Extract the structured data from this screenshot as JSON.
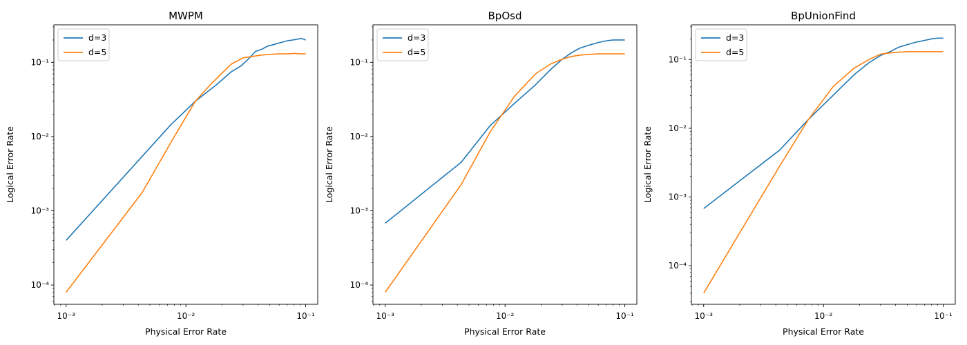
{
  "figure": {
    "title": "",
    "colors": {
      "d3": "#1f77b4",
      "d5": "#ff7f0e"
    }
  },
  "chart_data": [
    {
      "type": "line",
      "title": "MWPM",
      "xlabel": "Physical Error Rate",
      "ylabel": "Logical Error Rate",
      "xscale": "log",
      "yscale": "log",
      "xlim": [
        0.00079,
        0.126
      ],
      "ylim": [
        5.5e-05,
        0.32
      ],
      "xticks": [
        {
          "value": 0.001,
          "label": "10⁻³"
        },
        {
          "value": 0.01,
          "label": "10⁻²"
        },
        {
          "value": 0.1,
          "label": "10⁻¹"
        }
      ],
      "yticks": [
        {
          "value": 0.0001,
          "label": "10⁻⁴"
        },
        {
          "value": 0.001,
          "label": "10⁻³"
        },
        {
          "value": 0.01,
          "label": "10⁻²"
        },
        {
          "value": 0.1,
          "label": "10⁻¹"
        }
      ],
      "grid": false,
      "legend": "upper-left",
      "series": [
        {
          "name": "d=3",
          "color": "#1f77b4",
          "x": [
            0.001,
            0.0075,
            0.012,
            0.018,
            0.024,
            0.029,
            0.034,
            0.038,
            0.043,
            0.048,
            0.055,
            0.062,
            0.07,
            0.078,
            0.085,
            0.092,
            0.1
          ],
          "y": [
            0.0004,
            0.0145,
            0.03,
            0.05,
            0.075,
            0.09,
            0.115,
            0.14,
            0.15,
            0.165,
            0.175,
            0.185,
            0.195,
            0.2,
            0.205,
            0.21,
            0.2
          ]
        },
        {
          "name": "d=5",
          "color": "#ff7f0e",
          "x": [
            0.001,
            0.0043,
            0.0077,
            0.012,
            0.016,
            0.024,
            0.03,
            0.036,
            0.042,
            0.05,
            0.06,
            0.07,
            0.08,
            0.09,
            0.1
          ],
          "y": [
            8e-05,
            0.00175,
            0.009,
            0.03,
            0.05,
            0.095,
            0.115,
            0.12,
            0.125,
            0.128,
            0.13,
            0.13,
            0.132,
            0.13,
            0.13
          ]
        }
      ]
    },
    {
      "type": "line",
      "title": "BpOsd",
      "xlabel": "Physical Error Rate",
      "ylabel": "Logical Error Rate",
      "xscale": "log",
      "yscale": "log",
      "xlim": [
        0.00079,
        0.126
      ],
      "ylim": [
        5.5e-05,
        0.32
      ],
      "xticks": [
        {
          "value": 0.001,
          "label": "10⁻³"
        },
        {
          "value": 0.01,
          "label": "10⁻²"
        },
        {
          "value": 0.1,
          "label": "10⁻¹"
        }
      ],
      "yticks": [
        {
          "value": 0.0001,
          "label": "10⁻⁴"
        },
        {
          "value": 0.001,
          "label": "10⁻³"
        },
        {
          "value": 0.01,
          "label": "10⁻²"
        },
        {
          "value": 0.1,
          "label": "10⁻¹"
        }
      ],
      "grid": false,
      "legend": "upper-left",
      "series": [
        {
          "name": "d=3",
          "color": "#1f77b4",
          "x": [
            0.001,
            0.0043,
            0.0075,
            0.012,
            0.018,
            0.024,
            0.03,
            0.036,
            0.042,
            0.05,
            0.06,
            0.07,
            0.08,
            0.09,
            0.1
          ],
          "y": [
            0.00068,
            0.0045,
            0.014,
            0.028,
            0.05,
            0.08,
            0.11,
            0.135,
            0.155,
            0.17,
            0.185,
            0.195,
            0.2,
            0.2,
            0.2
          ]
        },
        {
          "name": "d=5",
          "color": "#ff7f0e",
          "x": [
            0.001,
            0.0043,
            0.0075,
            0.012,
            0.018,
            0.024,
            0.03,
            0.036,
            0.042,
            0.05,
            0.06,
            0.07,
            0.08,
            0.09,
            0.1
          ],
          "y": [
            8e-05,
            0.00225,
            0.0115,
            0.035,
            0.07,
            0.095,
            0.11,
            0.12,
            0.125,
            0.128,
            0.13,
            0.13,
            0.13,
            0.13,
            0.13
          ]
        }
      ]
    },
    {
      "type": "line",
      "title": "BpUnionFind",
      "xlabel": "Physical Error Rate",
      "ylabel": "Logical Error Rate",
      "xscale": "log",
      "yscale": "log",
      "xlim": [
        0.00079,
        0.126
      ],
      "ylim": [
        2.75e-05,
        0.32
      ],
      "xticks": [
        {
          "value": 0.001,
          "label": "10⁻³"
        },
        {
          "value": 0.01,
          "label": "10⁻²"
        },
        {
          "value": 0.1,
          "label": "10⁻¹"
        }
      ],
      "yticks": [
        {
          "value": 0.0001,
          "label": "10⁻⁴"
        },
        {
          "value": 0.001,
          "label": "10⁻³"
        },
        {
          "value": 0.01,
          "label": "10⁻²"
        },
        {
          "value": 0.1,
          "label": "10⁻¹"
        }
      ],
      "grid": false,
      "legend": "upper-left",
      "series": [
        {
          "name": "d=3",
          "color": "#1f77b4",
          "x": [
            0.001,
            0.0043,
            0.0075,
            0.012,
            0.018,
            0.024,
            0.03,
            0.036,
            0.042,
            0.05,
            0.06,
            0.07,
            0.08,
            0.09,
            0.1
          ],
          "y": [
            0.00068,
            0.0048,
            0.0135,
            0.03,
            0.06,
            0.09,
            0.115,
            0.13,
            0.15,
            0.165,
            0.18,
            0.19,
            0.2,
            0.205,
            0.205
          ]
        },
        {
          "name": "d=5",
          "color": "#ff7f0e",
          "x": [
            0.001,
            0.0043,
            0.0075,
            0.012,
            0.018,
            0.024,
            0.03,
            0.036,
            0.042,
            0.05,
            0.06,
            0.07,
            0.08,
            0.09,
            0.1
          ],
          "y": [
            4e-05,
            0.0028,
            0.0135,
            0.04,
            0.075,
            0.1,
            0.12,
            0.125,
            0.128,
            0.13,
            0.13,
            0.13,
            0.13,
            0.13,
            0.13
          ]
        }
      ]
    }
  ]
}
